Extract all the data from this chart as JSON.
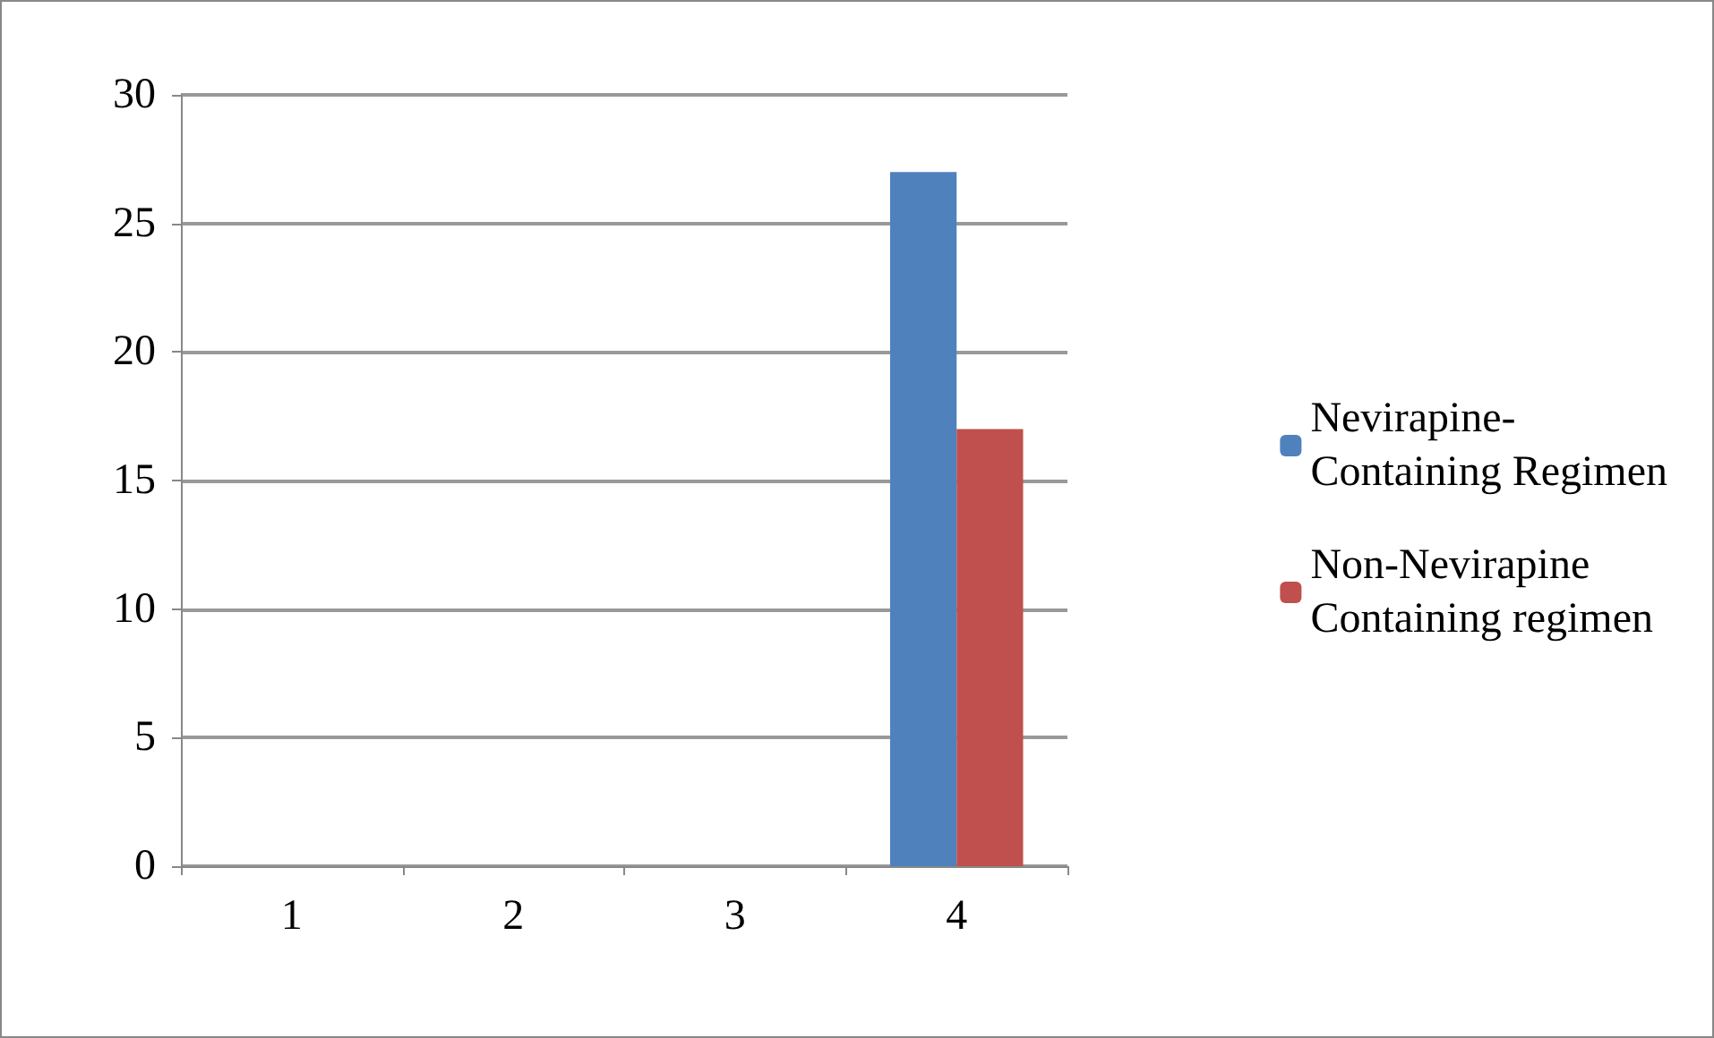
{
  "chart_data": {
    "type": "bar",
    "categories": [
      "1",
      "2",
      "3",
      "4"
    ],
    "series": [
      {
        "name": "Nevirapine-Containing Regimen",
        "color": "#4f81bd",
        "values": [
          0,
          0,
          0,
          27
        ]
      },
      {
        "name": "Non-Nevirapine Containing regimen",
        "color": "#c0504d",
        "values": [
          0,
          0,
          0,
          17
        ]
      }
    ],
    "ylim": [
      0,
      30
    ],
    "yticks": [
      0,
      5,
      10,
      15,
      20,
      25,
      30
    ],
    "grid": "y",
    "legend": "right"
  }
}
